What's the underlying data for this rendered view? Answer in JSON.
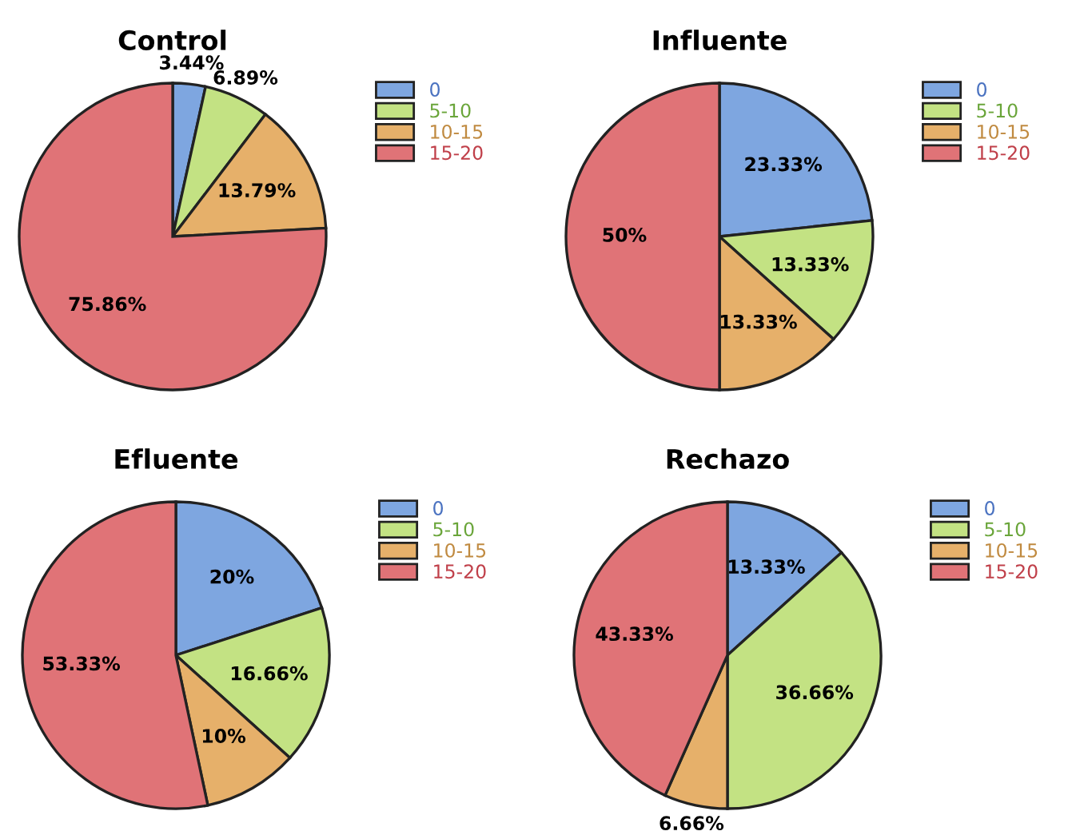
{
  "chart_data": [
    {
      "type": "pie",
      "title": "Control",
      "categories": [
        "0",
        "5-10",
        "10-15",
        "15-20"
      ],
      "values": [
        3.44,
        6.89,
        13.79,
        75.86
      ],
      "value_labels": [
        "3.44%",
        "6.89%",
        "13.79%",
        "75.86%"
      ],
      "colors": [
        "#7ea6e0",
        "#c3e283",
        "#e6b06a",
        "#e07377"
      ],
      "legend": "top right"
    },
    {
      "type": "pie",
      "title": "Influente",
      "categories": [
        "0",
        "5-10",
        "10-15",
        "15-20"
      ],
      "values": [
        23.33,
        13.33,
        13.33,
        50
      ],
      "value_labels": [
        "23.33%",
        "13.33%",
        "13.33%",
        "50%"
      ],
      "colors": [
        "#7ea6e0",
        "#c3e283",
        "#e6b06a",
        "#e07377"
      ],
      "legend": "top right"
    },
    {
      "type": "pie",
      "title": "Efluente",
      "categories": [
        "0",
        "5-10",
        "10-15",
        "15-20"
      ],
      "values": [
        20,
        16.66,
        10,
        53.33
      ],
      "value_labels": [
        "20%",
        "16.66%",
        "10%",
        "53.33%"
      ],
      "colors": [
        "#7ea6e0",
        "#c3e283",
        "#e6b06a",
        "#e07377"
      ],
      "legend": "top right"
    },
    {
      "type": "pie",
      "title": "Rechazo",
      "categories": [
        "0",
        "5-10",
        "10-15",
        "15-20"
      ],
      "values": [
        13.33,
        36.66,
        6.66,
        43.33
      ],
      "value_labels": [
        "13.33%",
        "36.66%",
        "6.66%",
        "43.33%"
      ],
      "colors": [
        "#7ea6e0",
        "#c3e283",
        "#e6b06a",
        "#e07377"
      ],
      "legend": "top right"
    }
  ]
}
